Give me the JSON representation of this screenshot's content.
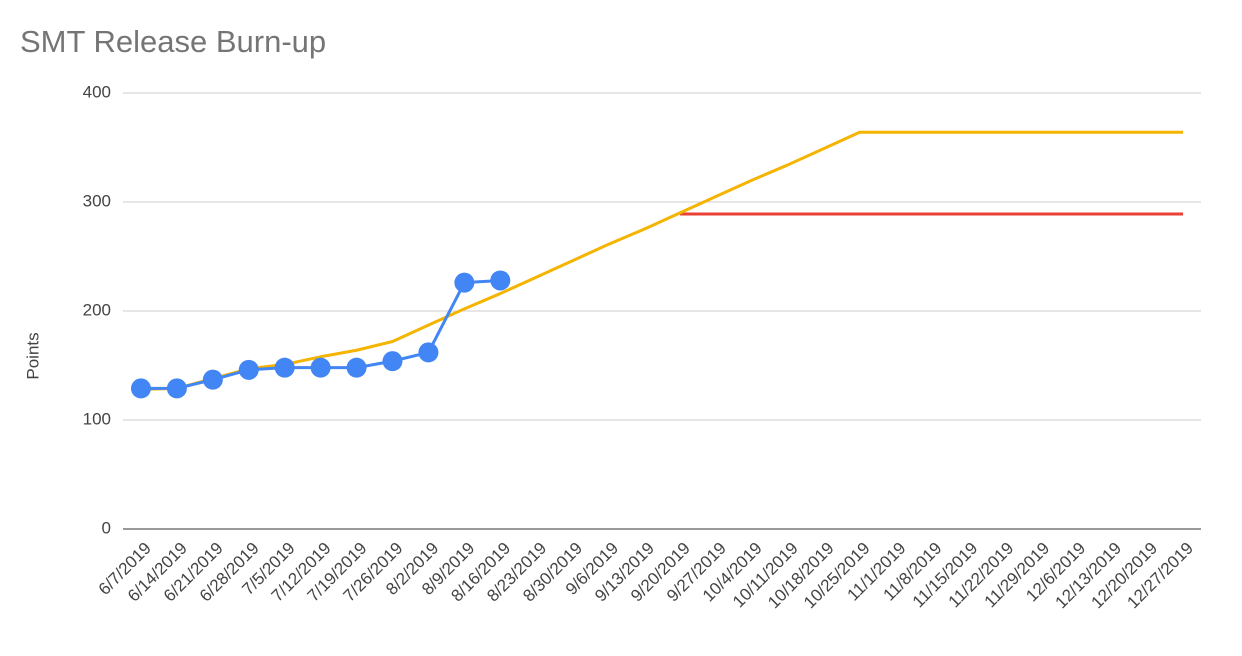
{
  "chart_data": {
    "type": "line",
    "title": "SMT Release Burn-up",
    "y_label": "Points",
    "categories": [
      "6/7/2019",
      "6/14/2019",
      "6/21/2019",
      "6/28/2019",
      "7/5/2019",
      "7/12/2019",
      "7/19/2019",
      "7/26/2019",
      "8/2/2019",
      "8/9/2019",
      "8/16/2019",
      "8/23/2019",
      "8/30/2019",
      "9/6/2019",
      "9/13/2019",
      "9/20/2019",
      "9/27/2019",
      "10/4/2019",
      "10/11/2019",
      "10/18/2019",
      "10/25/2019",
      "11/1/2019",
      "11/8/2019",
      "11/15/2019",
      "11/22/2019",
      "11/29/2019",
      "12/6/2019",
      "12/13/2019",
      "12/20/2019",
      "12/27/2019"
    ],
    "series": [
      {
        "color": "#e94235",
        "markers": false,
        "values": [
          null,
          null,
          null,
          null,
          null,
          null,
          null,
          null,
          null,
          null,
          null,
          null,
          null,
          null,
          null,
          289,
          289,
          289,
          289,
          289,
          289,
          289,
          289,
          289,
          289,
          289,
          289,
          289,
          289,
          289
        ]
      },
      {
        "color": "#f4b400",
        "markers": false,
        "values": [
          128,
          129,
          138,
          147,
          151,
          158,
          164,
          172,
          187,
          202,
          216,
          231,
          246,
          261,
          275,
          290,
          305,
          320,
          334,
          349,
          364,
          364,
          364,
          364,
          364,
          364,
          364,
          364,
          364,
          364
        ]
      },
      {
        "color": "#4285f4",
        "markers": true,
        "values": [
          129,
          129,
          137,
          146,
          148,
          148,
          148,
          154,
          162,
          226,
          228,
          null,
          null,
          null,
          null,
          null,
          null,
          null,
          null,
          null,
          null,
          null,
          null,
          null,
          null,
          null,
          null,
          null,
          null,
          null
        ]
      }
    ],
    "ylim": [
      0,
      400
    ],
    "yticks": [
      0,
      100,
      200,
      300,
      400
    ],
    "grid": true
  }
}
